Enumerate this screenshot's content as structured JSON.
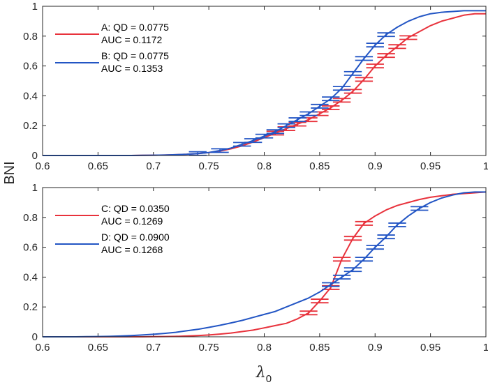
{
  "figure": {
    "ylabel": "BNI",
    "xlabel_symbol": "λ",
    "xlabel_subscript": "0"
  },
  "colors": {
    "red": "#e8323c",
    "blue": "#2255c4",
    "axis": "#262626"
  },
  "chart_data": [
    {
      "type": "line",
      "xlim": [
        0.6,
        1
      ],
      "ylim": [
        0,
        1
      ],
      "xticks": [
        0.6,
        0.65,
        0.7,
        0.75,
        0.8,
        0.85,
        0.9,
        0.95,
        1
      ],
      "xtick_labels": [
        "0.6",
        "0.65",
        "0.7",
        "0.75",
        "0.8",
        "0.85",
        "0.9",
        "0.95",
        "1"
      ],
      "yticks": [
        0,
        0.2,
        0.4,
        0.6,
        0.8,
        1
      ],
      "ytick_labels": [
        "0",
        "0.2",
        "0.4",
        "0.6",
        "0.8",
        "1"
      ],
      "legend_position": "top-left",
      "series": [
        {
          "name": "A",
          "legend_line1": "A: QD = 0.0775",
          "legend_line2": "AUC = 0.1172",
          "color": "#e8323c",
          "x": [
            0.6,
            0.61,
            0.62,
            0.63,
            0.64,
            0.65,
            0.66,
            0.67,
            0.68,
            0.69,
            0.7,
            0.71,
            0.72,
            0.73,
            0.74,
            0.75,
            0.76,
            0.77,
            0.78,
            0.79,
            0.8,
            0.81,
            0.82,
            0.83,
            0.84,
            0.85,
            0.86,
            0.87,
            0.88,
            0.89,
            0.9,
            0.91,
            0.92,
            0.93,
            0.94,
            0.95,
            0.96,
            0.97,
            0.98,
            0.99,
            1.0
          ],
          "y": [
            0,
            0,
            0,
            0,
            0,
            0,
            0,
            0,
            0,
            0.001,
            0.002,
            0.003,
            0.005,
            0.008,
            0.013,
            0.02,
            0.03,
            0.045,
            0.065,
            0.09,
            0.12,
            0.15,
            0.18,
            0.21,
            0.24,
            0.28,
            0.32,
            0.37,
            0.43,
            0.51,
            0.6,
            0.67,
            0.73,
            0.79,
            0.83,
            0.87,
            0.9,
            0.92,
            0.94,
            0.95,
            0.95
          ],
          "errorbar_x": [
            0.81,
            0.82,
            0.83,
            0.84,
            0.85,
            0.86,
            0.87,
            0.88,
            0.89,
            0.9,
            0.91,
            0.92,
            0.93
          ],
          "errorbar_halfwidth": 0.008
        },
        {
          "name": "B",
          "legend_line1": "B: QD = 0.0775",
          "legend_line2": "AUC = 0.1353",
          "color": "#2255c4",
          "x": [
            0.6,
            0.61,
            0.62,
            0.63,
            0.64,
            0.65,
            0.66,
            0.67,
            0.68,
            0.69,
            0.7,
            0.71,
            0.72,
            0.73,
            0.74,
            0.75,
            0.76,
            0.77,
            0.78,
            0.79,
            0.8,
            0.81,
            0.82,
            0.83,
            0.84,
            0.85,
            0.86,
            0.87,
            0.88,
            0.89,
            0.9,
            0.91,
            0.92,
            0.93,
            0.94,
            0.95,
            0.96,
            0.97,
            0.98,
            0.99,
            1.0
          ],
          "y": [
            0,
            0,
            0,
            0,
            0,
            0,
            0,
            0,
            0,
            0.001,
            0.002,
            0.003,
            0.005,
            0.008,
            0.013,
            0.02,
            0.033,
            0.05,
            0.075,
            0.1,
            0.13,
            0.16,
            0.2,
            0.24,
            0.28,
            0.33,
            0.38,
            0.45,
            0.55,
            0.65,
            0.74,
            0.81,
            0.86,
            0.9,
            0.93,
            0.95,
            0.96,
            0.965,
            0.97,
            0.97,
            0.97
          ],
          "errorbar_x": [
            0.74,
            0.76,
            0.78,
            0.79,
            0.8,
            0.81,
            0.82,
            0.83,
            0.84,
            0.85,
            0.86,
            0.87,
            0.88,
            0.89,
            0.9,
            0.91
          ],
          "errorbar_halfwidth": 0.008
        }
      ]
    },
    {
      "type": "line",
      "xlim": [
        0.6,
        1
      ],
      "ylim": [
        0,
        1
      ],
      "xticks": [
        0.6,
        0.65,
        0.7,
        0.75,
        0.8,
        0.85,
        0.9,
        0.95,
        1
      ],
      "xtick_labels": [
        "0.6",
        "0.65",
        "0.7",
        "0.75",
        "0.8",
        "0.85",
        "0.9",
        "0.95",
        "1"
      ],
      "yticks": [
        0,
        0.2,
        0.4,
        0.6,
        0.8,
        1
      ],
      "ytick_labels": [
        "0",
        "0.2",
        "0.4",
        "0.6",
        "0.8",
        "1"
      ],
      "legend_position": "top-left",
      "series": [
        {
          "name": "C",
          "legend_line1": "C: QD = 0.0350",
          "legend_line2": "AUC = 0.1269",
          "color": "#e8323c",
          "x": [
            0.6,
            0.61,
            0.62,
            0.63,
            0.64,
            0.65,
            0.66,
            0.67,
            0.68,
            0.69,
            0.7,
            0.71,
            0.72,
            0.73,
            0.74,
            0.75,
            0.76,
            0.77,
            0.78,
            0.79,
            0.8,
            0.81,
            0.82,
            0.83,
            0.84,
            0.85,
            0.86,
            0.87,
            0.88,
            0.89,
            0.9,
            0.91,
            0.92,
            0.93,
            0.94,
            0.95,
            0.96,
            0.97,
            0.98,
            0.99,
            1.0
          ],
          "y": [
            0,
            0,
            0,
            0,
            0,
            0,
            0,
            0,
            0,
            0,
            0.001,
            0.002,
            0.003,
            0.005,
            0.008,
            0.012,
            0.018,
            0.025,
            0.035,
            0.045,
            0.06,
            0.075,
            0.09,
            0.12,
            0.16,
            0.24,
            0.33,
            0.52,
            0.66,
            0.76,
            0.81,
            0.85,
            0.88,
            0.9,
            0.92,
            0.935,
            0.945,
            0.955,
            0.96,
            0.965,
            0.97
          ],
          "errorbar_x": [
            0.84,
            0.85,
            0.86,
            0.87,
            0.88,
            0.89
          ],
          "errorbar_halfwidth": 0.008
        },
        {
          "name": "D",
          "legend_line1": "D: QD = 0.0900",
          "legend_line2": "AUC = 0.1268",
          "color": "#2255c4",
          "x": [
            0.6,
            0.61,
            0.62,
            0.63,
            0.64,
            0.65,
            0.66,
            0.67,
            0.68,
            0.69,
            0.7,
            0.71,
            0.72,
            0.73,
            0.74,
            0.75,
            0.76,
            0.77,
            0.78,
            0.79,
            0.8,
            0.81,
            0.82,
            0.83,
            0.84,
            0.85,
            0.86,
            0.87,
            0.88,
            0.89,
            0.9,
            0.91,
            0.92,
            0.93,
            0.94,
            0.95,
            0.96,
            0.97,
            0.98,
            0.99,
            1.0
          ],
          "y": [
            0,
            0,
            0,
            0,
            0.001,
            0.002,
            0.003,
            0.005,
            0.008,
            0.012,
            0.017,
            0.023,
            0.03,
            0.04,
            0.05,
            0.063,
            0.077,
            0.093,
            0.11,
            0.13,
            0.15,
            0.17,
            0.2,
            0.23,
            0.26,
            0.3,
            0.35,
            0.4,
            0.45,
            0.52,
            0.6,
            0.67,
            0.75,
            0.81,
            0.86,
            0.9,
            0.93,
            0.95,
            0.965,
            0.97,
            0.97
          ],
          "errorbar_x": [
            0.86,
            0.87,
            0.88,
            0.89,
            0.9,
            0.91,
            0.92,
            0.94
          ],
          "errorbar_halfwidth": 0.008
        }
      ]
    }
  ]
}
